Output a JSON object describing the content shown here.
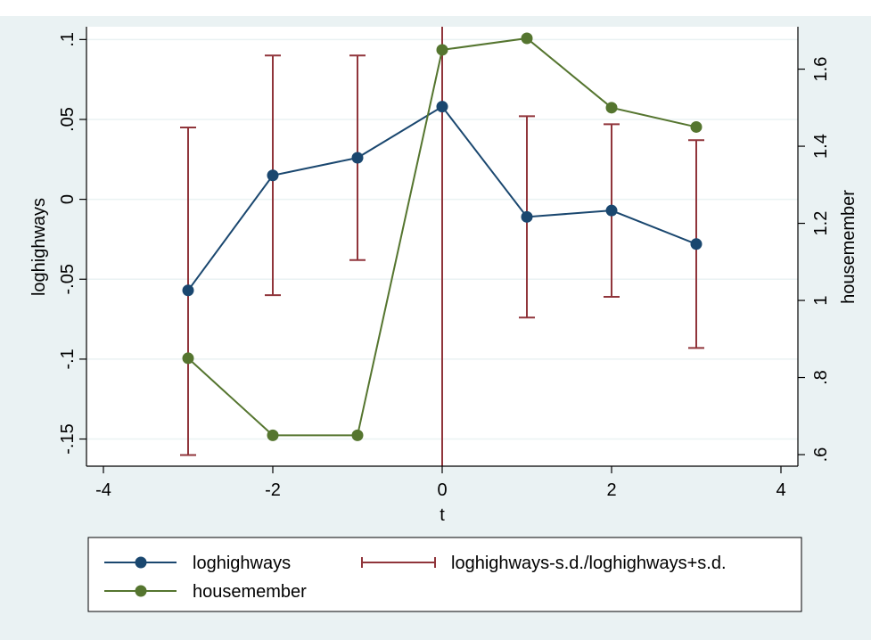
{
  "chart_data": {
    "type": "line",
    "title": "",
    "xlabel": "t",
    "ylabel_left": "loghighways",
    "ylabel_right": "housemember",
    "x": [
      -3,
      -2,
      -1,
      0,
      1,
      2,
      3
    ],
    "xlim": [
      -4.2,
      4.2
    ],
    "xticks": [
      -4,
      -2,
      0,
      2,
      4
    ],
    "xtick_labels": [
      "-4",
      "-2",
      "0",
      "2",
      "4"
    ],
    "ylim_left": [
      -0.167,
      0.108
    ],
    "yticks_left": [
      -0.15,
      -0.1,
      -0.05,
      0,
      0.05,
      0.1
    ],
    "ytick_labels_left": [
      "-.15",
      "-.1",
      "-.05",
      "0",
      ".05",
      ".1"
    ],
    "ylim_right": [
      0.57,
      1.71
    ],
    "yticks_right": [
      0.6,
      0.8,
      1.0,
      1.2,
      1.4,
      1.6
    ],
    "ytick_labels_right": [
      ".6",
      ".8",
      "1",
      "1.2",
      "1.4",
      "1.6"
    ],
    "grid": true,
    "reference_line_x": 0,
    "series": [
      {
        "name": "loghighways",
        "axis": "left",
        "kind": "line-marker",
        "color": "#1a476f",
        "values": [
          -0.057,
          0.015,
          0.026,
          0.058,
          -0.011,
          -0.007,
          -0.028
        ]
      },
      {
        "name": "loghighways-s.d./loghighways+s.d.",
        "axis": "left",
        "kind": "errorbar",
        "color": "#90353b",
        "low": [
          -0.16,
          -0.06,
          -0.038,
          null,
          -0.074,
          -0.061,
          -0.093
        ],
        "high": [
          0.045,
          0.09,
          0.09,
          null,
          0.052,
          0.047,
          0.037
        ]
      },
      {
        "name": "housemember",
        "axis": "right",
        "kind": "line-marker",
        "color": "#55752f",
        "values": [
          0.85,
          0.65,
          0.65,
          1.65,
          1.68,
          1.5,
          1.45
        ]
      }
    ],
    "legend": {
      "position": "bottom",
      "entries": [
        "loghighways",
        "loghighways-s.d./loghighways+s.d.",
        "housemember"
      ]
    }
  },
  "colors": {
    "outer_background": "#eaf2f3",
    "plot_background": "#ffffff",
    "grid": "#eaf2f3",
    "axis": "#000000"
  }
}
